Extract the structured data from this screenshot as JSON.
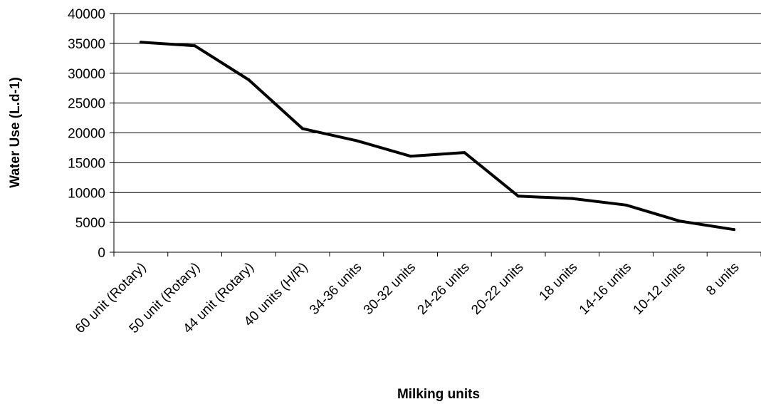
{
  "chart_data": {
    "type": "line",
    "title": "",
    "xlabel": "Milking units",
    "ylabel": "Water Use (L.d-1)",
    "ylim": [
      0,
      40000
    ],
    "yticks": [
      0,
      5000,
      10000,
      15000,
      20000,
      25000,
      30000,
      35000,
      40000
    ],
    "grid": "horizontal",
    "legend": "none",
    "line_color": "#000000",
    "categories": [
      "60 unit (Rotary)",
      "50 unit (Rotary)",
      "44 unit (Rotary)",
      "40 units (H/R)",
      "34-36 units",
      "30-32 units",
      "24-26 units",
      "20-22 units",
      "18 units",
      "14-16 units",
      "10-12 units",
      "8 units"
    ],
    "values": [
      35200,
      34600,
      28900,
      20700,
      18700,
      16100,
      16700,
      9400,
      9000,
      7900,
      5200,
      3800
    ]
  }
}
